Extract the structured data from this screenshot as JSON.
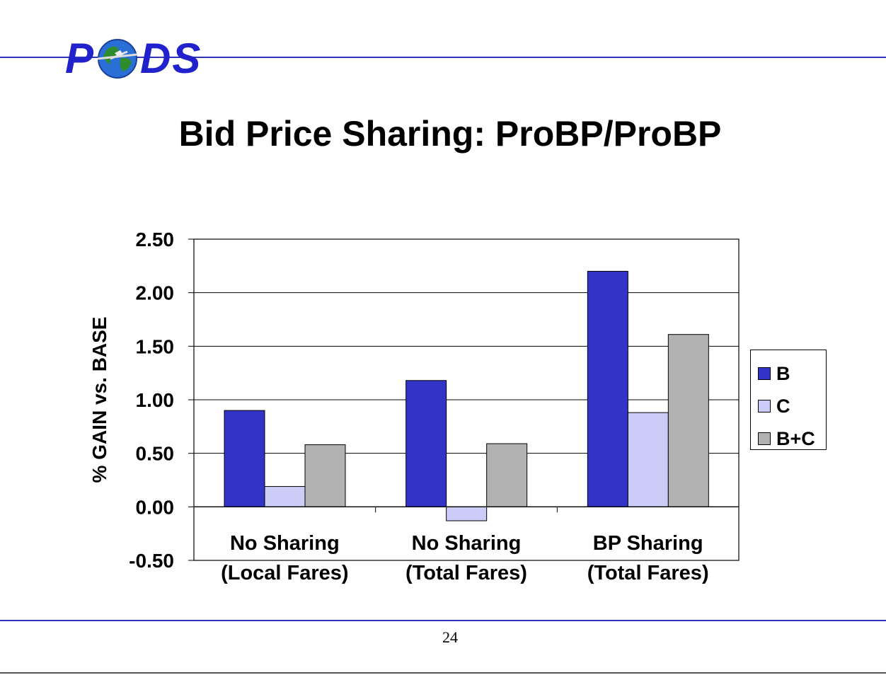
{
  "header": {
    "logo_text_left": "P",
    "logo_text_right": "DS",
    "rule_color": "#3333bb"
  },
  "slide": {
    "title": "Bid Price Sharing: ProBP/ProBP",
    "page_number": "24"
  },
  "chart_data": {
    "type": "bar",
    "title": "",
    "ylabel": "% GAIN vs. BASE",
    "xlabel": "",
    "ylim": [
      -0.5,
      2.5
    ],
    "yticks": [
      "2.50",
      "2.00",
      "1.50",
      "1.00",
      "0.50",
      "0.00",
      "-0.50"
    ],
    "ytick_values": [
      2.5,
      2.0,
      1.5,
      1.0,
      0.5,
      0.0,
      -0.5
    ],
    "grid": true,
    "legend_position": "right",
    "categories": [
      [
        "No Sharing",
        "(Local Fares)"
      ],
      [
        "No Sharing",
        "(Total Fares)"
      ],
      [
        "BP Sharing",
        "(Total Fares)"
      ]
    ],
    "series": [
      {
        "name": "B",
        "color": "#3333c8",
        "values": [
          0.9,
          1.18,
          2.2
        ]
      },
      {
        "name": "C",
        "color": "#ccccf8",
        "values": [
          0.19,
          -0.13,
          0.88
        ]
      },
      {
        "name": "B+C",
        "color": "#b2b2b2",
        "values": [
          0.58,
          0.59,
          1.61
        ]
      }
    ]
  }
}
